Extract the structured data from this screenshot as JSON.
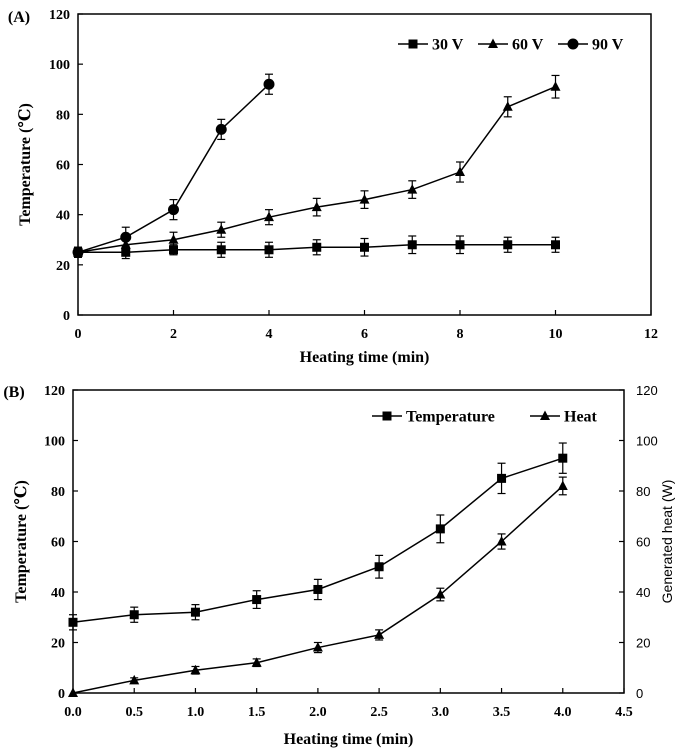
{
  "chart_data": [
    {
      "panel_label": "(A)",
      "type": "line",
      "title": "",
      "xlabel": "Heating time (min)",
      "ylabel": "Temperature (℃)",
      "xlim": [
        0,
        12
      ],
      "ylim": [
        0,
        120
      ],
      "xticks": [
        0,
        2,
        4,
        6,
        8,
        10,
        12
      ],
      "yticks": [
        0,
        20,
        40,
        60,
        80,
        100,
        120
      ],
      "xtick_labels": [
        "0",
        "2",
        "4",
        "6",
        "8",
        "10",
        "12"
      ],
      "ytick_labels": [
        "0",
        "20",
        "40",
        "60",
        "80",
        "100",
        "120"
      ],
      "grid": false,
      "legend_position": "top-right",
      "series": [
        {
          "name": "30 V",
          "marker": "square",
          "x": [
            0,
            1,
            2,
            3,
            4,
            5,
            6,
            7,
            8,
            9,
            10
          ],
          "values": [
            25,
            25,
            26,
            26,
            26,
            27,
            27,
            28,
            28,
            28,
            28
          ],
          "errors": [
            2,
            2.5,
            2,
            3,
            3,
            3,
            3.5,
            3.5,
            3.5,
            3,
            3
          ]
        },
        {
          "name": "60 V",
          "marker": "triangle",
          "x": [
            0,
            1,
            2,
            3,
            4,
            5,
            6,
            7,
            8,
            9,
            10
          ],
          "values": [
            25,
            28,
            30,
            34,
            39,
            43,
            46,
            50,
            57,
            83,
            91
          ],
          "errors": [
            2,
            3,
            3,
            3,
            3,
            3.5,
            3.5,
            3.5,
            4,
            4,
            4.5
          ]
        },
        {
          "name": "90 V",
          "marker": "circle",
          "x": [
            0,
            1,
            2,
            3,
            4
          ],
          "values": [
            25,
            31,
            42,
            74,
            92
          ],
          "errors": [
            2,
            4,
            4,
            4,
            4
          ]
        }
      ]
    },
    {
      "panel_label": "(B)",
      "type": "line",
      "title": "",
      "xlabel": "Heating time (min)",
      "ylabel": "Temperature (℃)",
      "ylabel_right": "Generated heat (W)",
      "xlim": [
        0,
        4.5
      ],
      "ylim": [
        0,
        120
      ],
      "ylim_right": [
        0,
        120
      ],
      "xticks": [
        0,
        0.5,
        1,
        1.5,
        2,
        2.5,
        3,
        3.5,
        4,
        4.5
      ],
      "yticks": [
        0,
        20,
        40,
        60,
        80,
        100,
        120
      ],
      "xtick_labels": [
        "0.0",
        "0.5",
        "1.0",
        "1.5",
        "2.0",
        "2.5",
        "3.0",
        "3.5",
        "4.0",
        "4.5"
      ],
      "ytick_labels": [
        "0",
        "20",
        "40",
        "60",
        "80",
        "100",
        "120"
      ],
      "ytick_labels_right": [
        "0",
        "20",
        "40",
        "60",
        "80",
        "100",
        "120"
      ],
      "grid": false,
      "legend_position": "top-right",
      "series": [
        {
          "name": "Temperature",
          "marker": "square",
          "axis": "left",
          "x": [
            0,
            0.5,
            1,
            1.5,
            2,
            2.5,
            3,
            3.5,
            4
          ],
          "values": [
            28,
            31,
            32,
            37,
            41,
            50,
            65,
            85,
            93
          ],
          "errors": [
            3,
            3,
            3,
            3.5,
            4,
            4.5,
            5.5,
            6,
            6
          ]
        },
        {
          "name": "Heat",
          "marker": "triangle",
          "axis": "right",
          "x": [
            0,
            0.5,
            1,
            1.5,
            2,
            2.5,
            3,
            3.5,
            4
          ],
          "values": [
            0,
            5,
            9,
            12,
            18,
            23,
            39,
            60,
            82
          ],
          "errors": [
            0,
            1,
            1.5,
            1.5,
            2,
            2,
            2.5,
            3,
            3.5
          ]
        }
      ]
    }
  ]
}
